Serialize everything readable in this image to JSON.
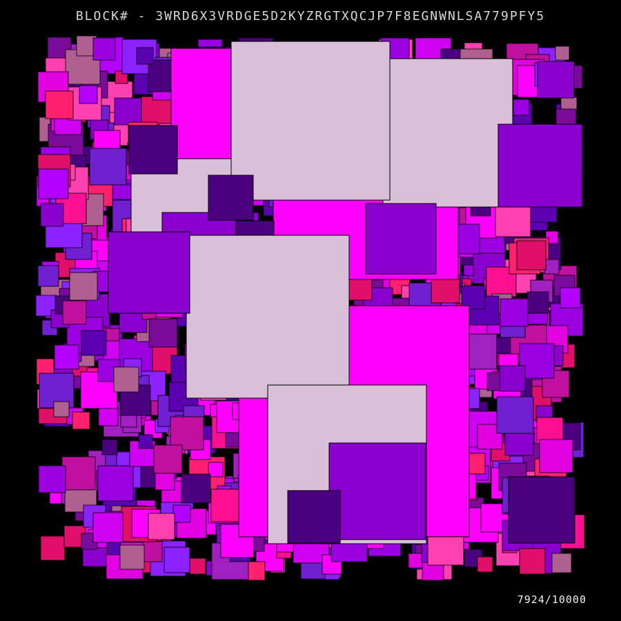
{
  "header": {
    "title": "BLOCK# - 3WRD6X3VRDGE5D2KYZRGTXQCJP7F8EGNWNLSA779PFY5"
  },
  "footer": {
    "counter": "7924/10000"
  },
  "palette": {
    "background": "#000000",
    "magentas": [
      "#ff00ff",
      "#e000e0",
      "#d000f0",
      "#b400ff",
      "#9b00e0",
      "#8a00cc",
      "#7020d0",
      "#5a00b0",
      "#4b0080",
      "#c010a0",
      "#e0106a",
      "#ff2070",
      "#ff40b0",
      "#a020c0",
      "#ff1090",
      "#8c22ff",
      "#b06090",
      "#7a0a9a"
    ],
    "light": "#d8c0d8",
    "dark": "#4b0080"
  }
}
